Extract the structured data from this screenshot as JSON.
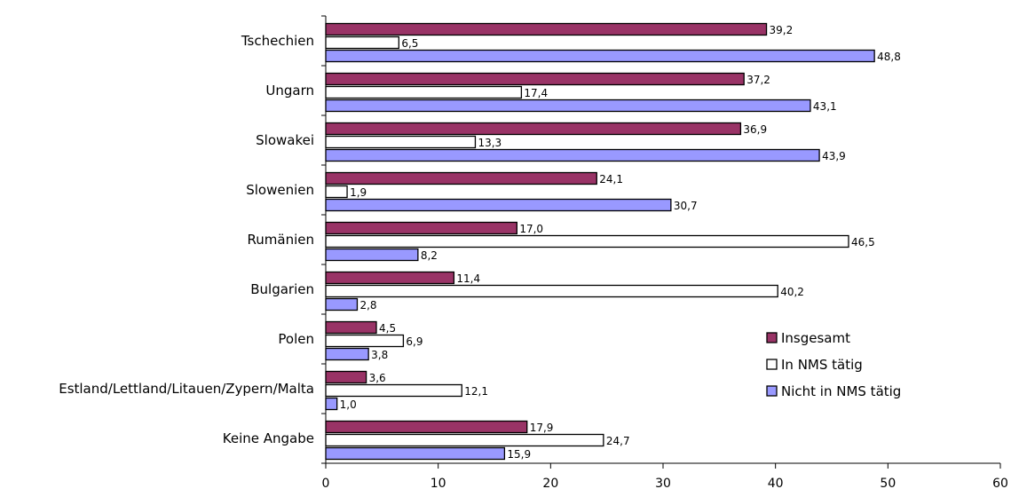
{
  "chart_data": {
    "type": "bar",
    "orientation": "horizontal",
    "categories": [
      "Tschechien",
      "Ungarn",
      "Slowakei",
      "Slowenien",
      "Rumänien",
      "Bulgarien",
      "Polen",
      "Estland/Lettland/Litauen/Zypern/Malta",
      "Keine Angabe"
    ],
    "series": [
      {
        "name": "Insgesamt",
        "color": "#993366",
        "values": [
          39.2,
          37.2,
          36.9,
          24.1,
          17.0,
          11.4,
          4.5,
          3.6,
          17.9
        ],
        "value_labels": [
          "39,2",
          "37,2",
          "36,9",
          "24,1",
          "17,0",
          "11,4",
          "4,5",
          "3,6",
          "17,9"
        ]
      },
      {
        "name": "In NMS tätig",
        "color": "#ffffff",
        "values": [
          6.5,
          17.4,
          13.3,
          1.9,
          46.5,
          40.2,
          6.9,
          12.1,
          24.7
        ],
        "value_labels": [
          "6,5",
          "17,4",
          "13,3",
          "1,9",
          "46,5",
          "40,2",
          "6,9",
          "12,1",
          "24,7"
        ]
      },
      {
        "name": "Nicht in NMS tätig",
        "color": "#9999ff",
        "values": [
          48.8,
          43.1,
          43.9,
          30.7,
          8.2,
          2.8,
          3.8,
          1.0,
          15.9
        ],
        "value_labels": [
          "48,8",
          "43,1",
          "43,9",
          "30,7",
          "8,2",
          "2,8",
          "3,8",
          "1,0",
          "15,9"
        ]
      }
    ],
    "xlim": [
      0,
      60
    ],
    "x_ticks": [
      0,
      10,
      20,
      30,
      40,
      50,
      60
    ],
    "x_tick_labels": [
      "0",
      "10",
      "20",
      "30",
      "40",
      "50",
      "60"
    ],
    "grid": false,
    "legend_position": "right"
  }
}
